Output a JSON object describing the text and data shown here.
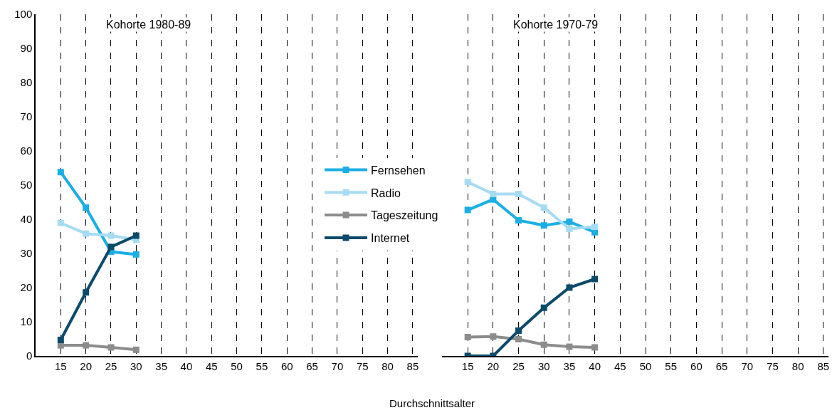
{
  "chart_data": [
    {
      "type": "line",
      "title": "Kohorte 1980-89",
      "xlabel": "Durchschnittsalter",
      "x": [
        15,
        20,
        25,
        30
      ],
      "xlim": [
        10,
        86
      ],
      "xticks": [
        15,
        20,
        25,
        30,
        35,
        40,
        45,
        50,
        55,
        60,
        65,
        70,
        75,
        80,
        85
      ],
      "ylim": [
        0,
        100
      ],
      "yticks": [
        0,
        10,
        20,
        30,
        40,
        50,
        60,
        70,
        80,
        90,
        100
      ],
      "grid": "x",
      "legend": "right",
      "marker": "square",
      "line_style": "solid",
      "series": [
        {
          "name": "Fernsehen",
          "color": "#1aaee5",
          "values": [
            53.8,
            43.4,
            30.5,
            29.7
          ]
        },
        {
          "name": "Radio",
          "color": "#a6dcf3",
          "values": [
            38.9,
            35.8,
            35.2,
            34
          ]
        },
        {
          "name": "Tageszeitung",
          "color": "#8c8c8c",
          "values": [
            3.1,
            3.1,
            2.5,
            1.8
          ]
        },
        {
          "name": "Internet",
          "color": "#0b4a6b",
          "values": [
            4.7,
            18.6,
            31.9,
            35.2
          ]
        }
      ]
    },
    {
      "type": "line",
      "title": "Kohorte 1970-79",
      "x": [
        15,
        20,
        25,
        30,
        35,
        40
      ],
      "xlim": [
        10,
        86
      ],
      "xticks": [
        15,
        20,
        25,
        30,
        35,
        40,
        45,
        50,
        55,
        60,
        65,
        70,
        75,
        80,
        85
      ],
      "ylim": [
        0,
        100
      ],
      "grid": "x",
      "tick_labels": "x",
      "marker": "square",
      "line_style": "solid",
      "series": [
        {
          "color": "#1aaee5",
          "values": [
            42.7,
            45.8,
            39.7,
            38.2,
            39.3,
            36.2
          ]
        },
        {
          "color": "#a6dcf3",
          "values": [
            50.9,
            47.4,
            47.4,
            43.4,
            37.2,
            37.8
          ]
        },
        {
          "color": "#8c8c8c",
          "values": [
            5.5,
            5.7,
            4.9,
            3.3,
            2.7,
            2.5
          ]
        },
        {
          "color": "#0b4a6b",
          "values": [
            0,
            0,
            7.4,
            14.1,
            20,
            22.5
          ]
        }
      ]
    }
  ]
}
